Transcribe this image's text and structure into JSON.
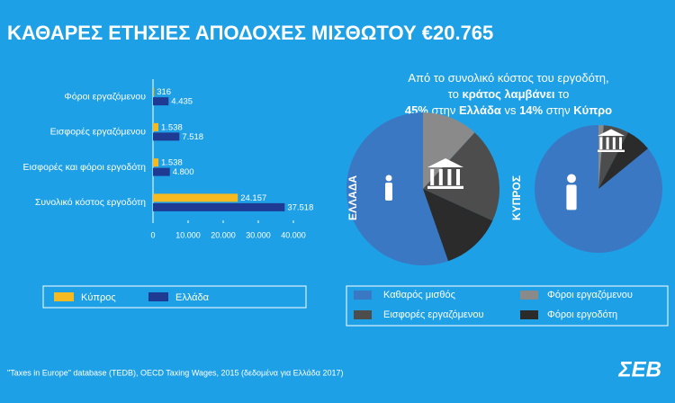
{
  "header": {
    "title": "ΚΑΘΑΡΕΣ ΕΤΗΣΙΕΣ ΑΠΟΔΟΧΕΣ ΜΙΣΘΩΤΟΥ €20.765"
  },
  "callout": {
    "lines": [
      [
        {
          "text": "Από το συνολικό κόστος του εργοδότη,",
          "bold": false
        }
      ],
      [
        {
          "text": "το ",
          "bold": false
        },
        {
          "text": "κράτος λαμβάνει",
          "bold": true
        },
        {
          "text": " το",
          "bold": false
        }
      ],
      [
        {
          "text": "45%",
          "bold": true
        },
        {
          "text": " στην ",
          "bold": false
        },
        {
          "text": "Ελλάδα",
          "bold": true
        },
        {
          "text": " vs ",
          "bold": false
        },
        {
          "text": "14%",
          "bold": true
        },
        {
          "text": " στην ",
          "bold": false
        },
        {
          "text": "Κύπρο",
          "bold": true
        }
      ]
    ]
  },
  "chart_data": [
    {
      "type": "hbar",
      "categories": [
        "Φόροι εργαζόμενου",
        "Εισφορές εργαζόμενου",
        "Εισφορές και φόροι εργοδότη",
        "Συνολικό κόστος εργοδότη"
      ],
      "series": [
        {
          "name": "Κύπρος",
          "color": "#f5b921",
          "values": [
            316,
            1538,
            1538,
            24157
          ],
          "value_labels": [
            "316",
            "1.538",
            "1.538",
            "24.157"
          ]
        },
        {
          "name": "Ελλάδα",
          "color": "#1f3a93",
          "values": [
            4435,
            7518,
            4800,
            37518
          ],
          "value_labels": [
            "4.435",
            "7.518",
            "4.800",
            "37.518"
          ]
        }
      ],
      "xlim": [
        0,
        40000
      ],
      "xticks": [
        0,
        {
          "value": 10000,
          "label": "10.000"
        },
        {
          "value": 20000,
          "label": "20.000"
        },
        {
          "value": 30000,
          "label": "30.000"
        },
        {
          "value": 40000,
          "label": "40.000"
        }
      ]
    },
    {
      "type": "pie",
      "categories": [
        "Καθαρός μισθός",
        "Φόροι εργαζόμενου",
        "Εισφορές εργαζόμενου",
        "Φόροι εργοδότη"
      ],
      "colors": [
        "#3a78c3",
        "#8a8a8a",
        "#4d4d4d",
        "#2b2b2b"
      ],
      "series": [
        {
          "name": "ΕΛΛΑΔΑ",
          "values": [
            55.3,
            11.8,
            20.0,
            12.8
          ]
        },
        {
          "name": "ΚΥΠΡΟΣ",
          "values": [
            85.9,
            1.3,
            6.4,
            6.4
          ]
        }
      ]
    }
  ],
  "footer": {
    "source": "\"Taxes in Europe\" database (TEDB), OECD Taxing Wages, 2015 (δεδομένα για Ελλάδα 2017)",
    "logo": "ΣΕΒ"
  }
}
